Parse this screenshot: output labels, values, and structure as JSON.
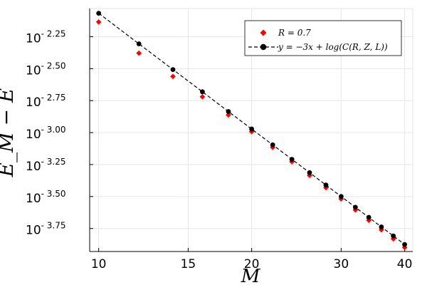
{
  "chart_data": {
    "type": "scatter",
    "xscale": "log",
    "yscale": "log10",
    "xlabel": "M",
    "ylabel": "E_M − E",
    "xlim": [
      9.6,
      41.5
    ],
    "ylim": [
      -3.93,
      -2.03
    ],
    "xticks": [
      {
        "value": 10,
        "label": "10"
      },
      {
        "value": 15,
        "label": "15"
      },
      {
        "value": 20,
        "label": "20"
      },
      {
        "value": 30,
        "label": "30"
      },
      {
        "value": 40,
        "label": "40"
      }
    ],
    "yticks": [
      {
        "value": -2.25,
        "base": "10",
        "exp": "- 2.25"
      },
      {
        "value": -2.5,
        "base": "10",
        "exp": "- 2.50"
      },
      {
        "value": -2.75,
        "base": "10",
        "exp": "- 2.75"
      },
      {
        "value": -3.0,
        "base": "10",
        "exp": "- 3.00"
      },
      {
        "value": -3.25,
        "base": "10",
        "exp": "- 3.25"
      },
      {
        "value": -3.5,
        "base": "10",
        "exp": "- 3.50"
      },
      {
        "value": -3.75,
        "base": "10",
        "exp": "- 3.75"
      }
    ],
    "grid": true,
    "legend_position": "top-right",
    "series": [
      {
        "name": "R = 0.7",
        "marker": "diamond",
        "color": "#ff0000",
        "x": [
          10,
          12,
          14,
          16,
          18,
          20,
          22,
          24,
          26,
          28,
          30,
          32,
          34,
          36,
          38,
          40
        ],
        "y": [
          -2.135,
          -2.379,
          -2.561,
          -2.72,
          -2.862,
          -2.993,
          -3.116,
          -3.228,
          -3.335,
          -3.431,
          -3.519,
          -3.605,
          -3.686,
          -3.76,
          -3.831,
          -3.898
        ]
      },
      {
        "name": "y = −3x + log(C(R, Z, L))",
        "marker": "circle",
        "line": "dashed",
        "color": "#000000",
        "x": [
          10,
          12,
          14,
          16,
          18,
          20,
          22,
          24,
          26,
          28,
          30,
          32,
          34,
          36,
          38,
          40
        ],
        "y": [
          -2.067,
          -2.306,
          -2.507,
          -2.681,
          -2.835,
          -2.972,
          -3.096,
          -3.209,
          -3.313,
          -3.41,
          -3.5,
          -3.584,
          -3.663,
          -3.738,
          -3.808,
          -3.875
        ]
      }
    ]
  }
}
